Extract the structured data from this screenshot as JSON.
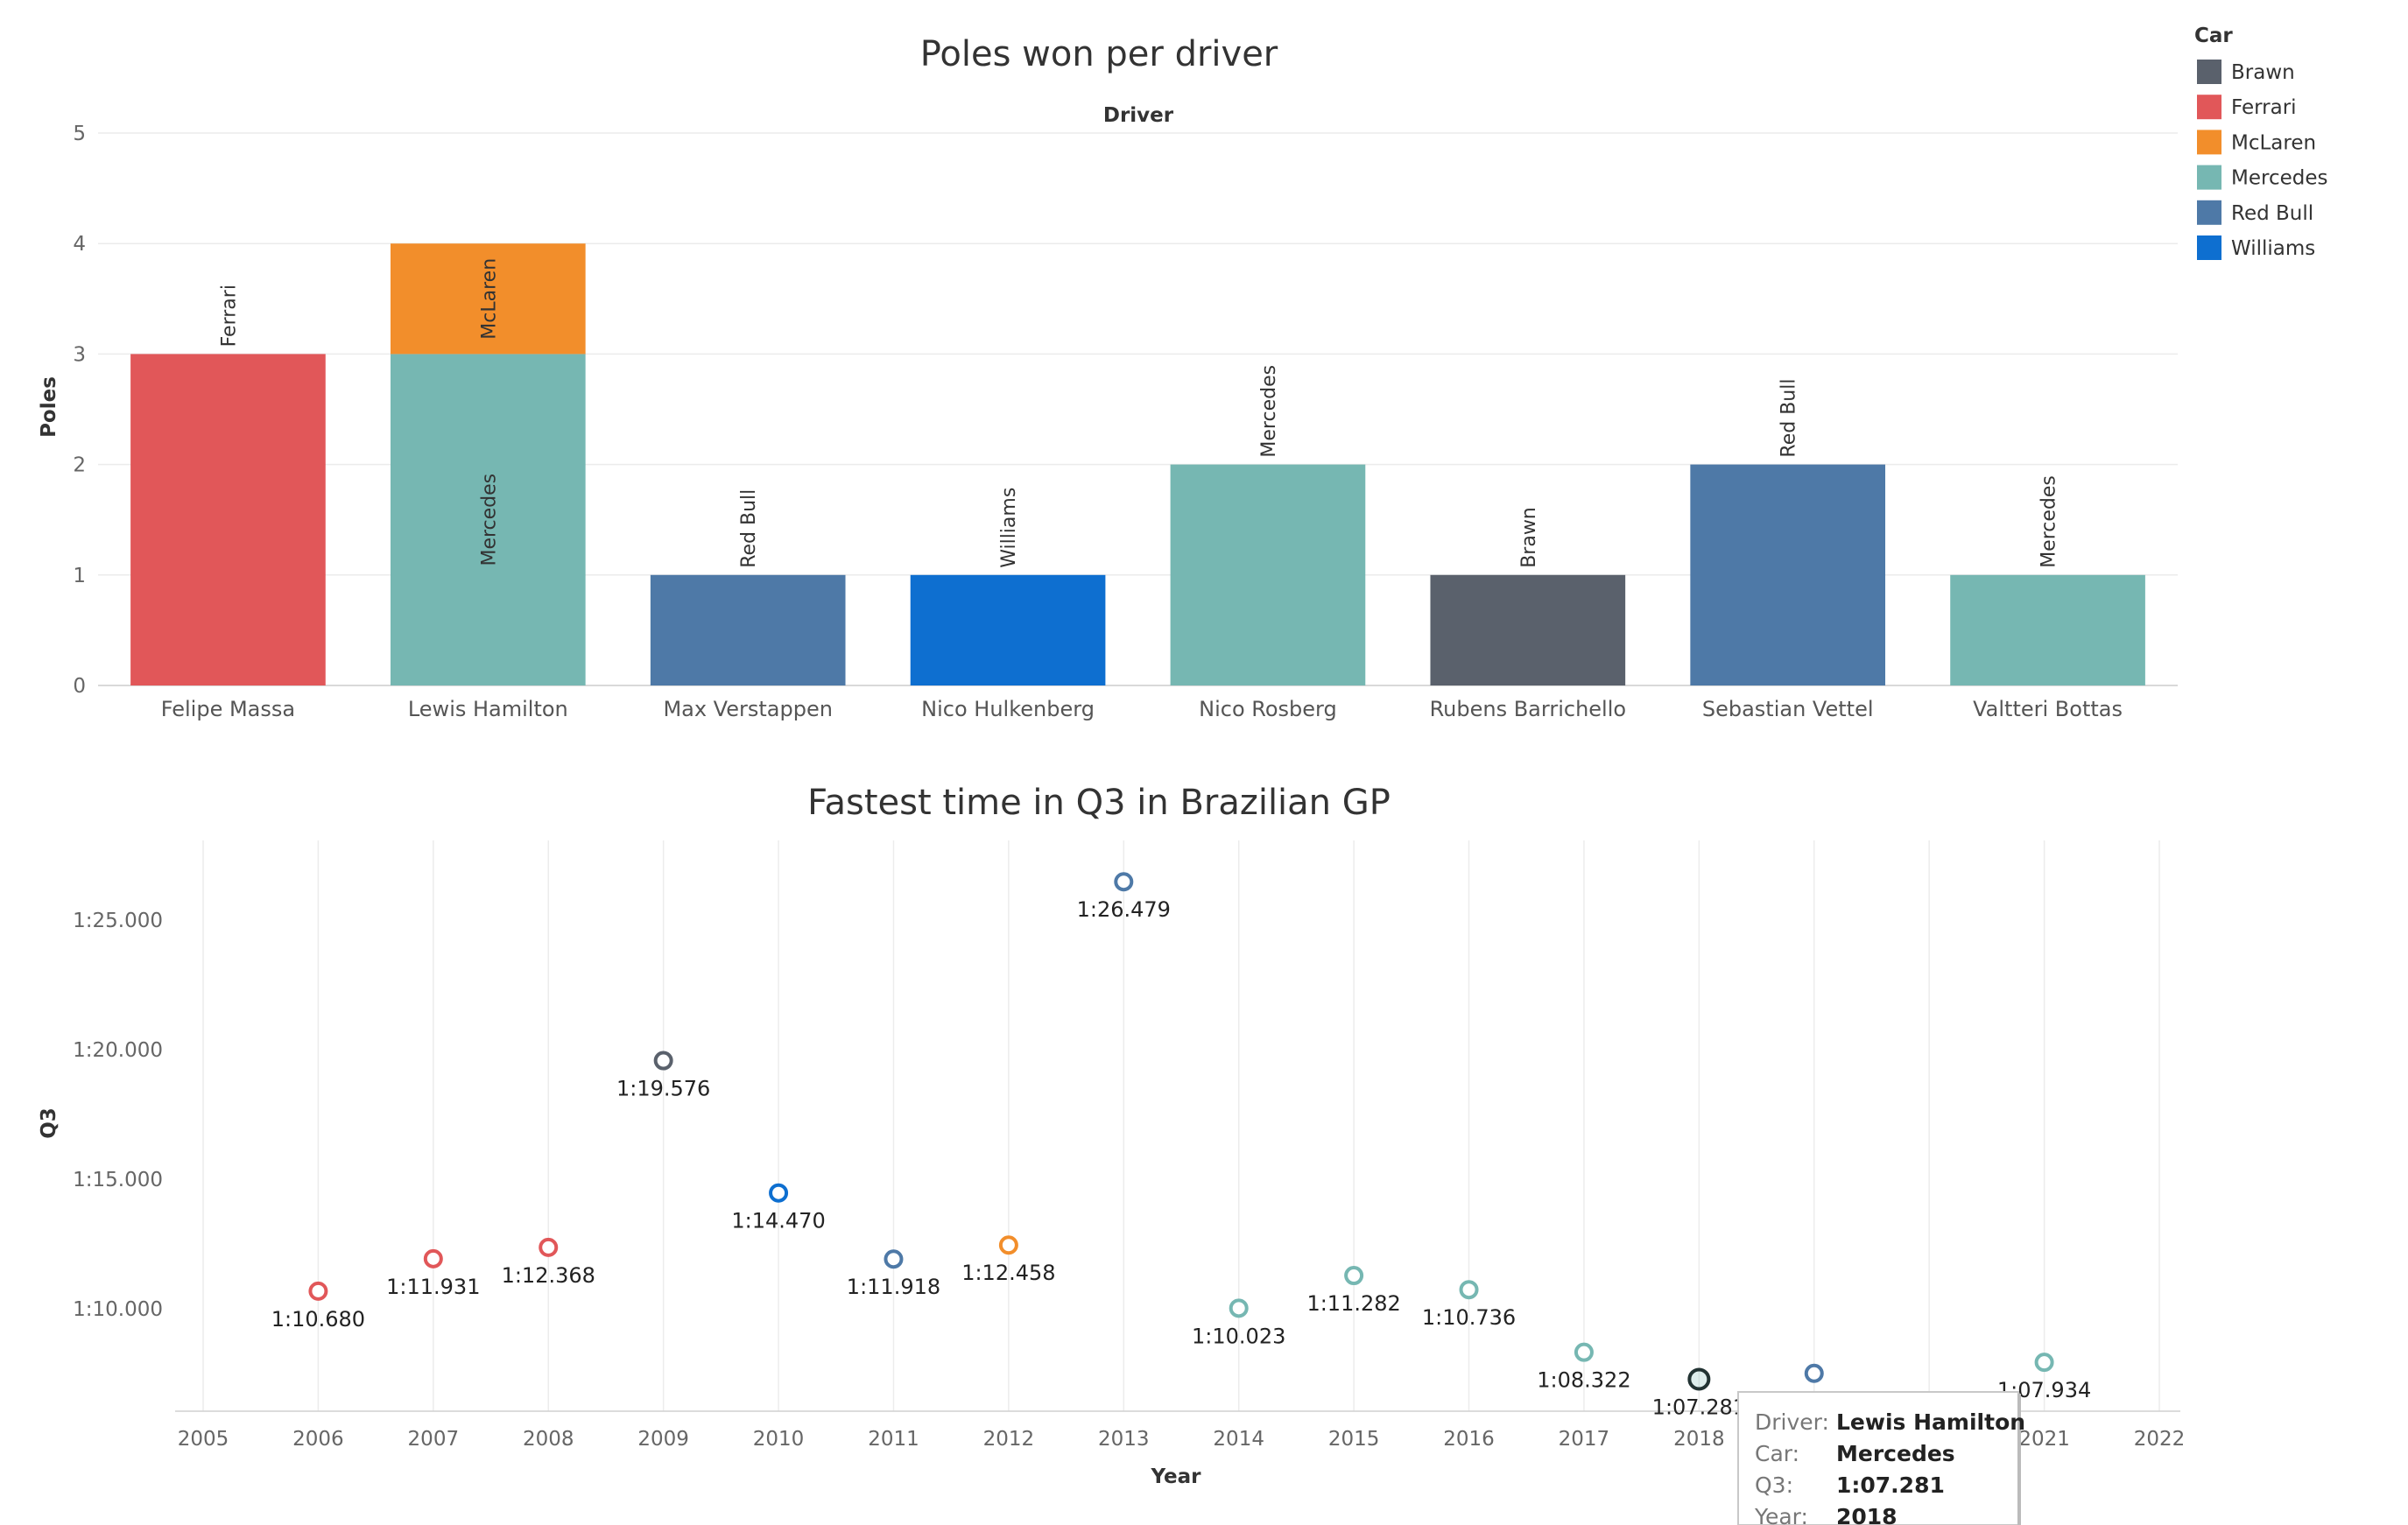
{
  "legend": {
    "title": "Car",
    "items": [
      {
        "name": "Brawn",
        "color": "#5a616c"
      },
      {
        "name": "Ferrari",
        "color": "#e15759"
      },
      {
        "name": "McLaren",
        "color": "#f28e2b"
      },
      {
        "name": "Mercedes",
        "color": "#76b7b2"
      },
      {
        "name": "Red Bull",
        "color": "#4e79a7"
      },
      {
        "name": "Williams",
        "color": "#0e6fd0"
      }
    ]
  },
  "chart_data": [
    {
      "type": "bar",
      "stacked": true,
      "title": "Poles won per driver",
      "header": "Driver",
      "ylabel": "Poles",
      "ylim": [
        0,
        5
      ],
      "yticks": [
        0,
        1,
        2,
        3,
        4,
        5
      ],
      "categories": [
        "Felipe Massa",
        "Lewis Hamilton",
        "Max Verstappen",
        "Nico Hulkenberg",
        "Nico Rosberg",
        "Rubens Barrichello",
        "Sebastian Vettel",
        "Valtteri Bottas"
      ],
      "stacks": [
        [
          {
            "car": "Ferrari",
            "value": 3
          }
        ],
        [
          {
            "car": "Mercedes",
            "value": 3
          },
          {
            "car": "McLaren",
            "value": 1
          }
        ],
        [
          {
            "car": "Red Bull",
            "value": 1
          }
        ],
        [
          {
            "car": "Williams",
            "value": 1
          }
        ],
        [
          {
            "car": "Mercedes",
            "value": 2
          }
        ],
        [
          {
            "car": "Brawn",
            "value": 1
          }
        ],
        [
          {
            "car": "Red Bull",
            "value": 2
          }
        ],
        [
          {
            "car": "Mercedes",
            "value": 1
          }
        ]
      ],
      "grid": true
    },
    {
      "type": "scatter",
      "title": "Fastest time in Q3 in Brazilian GP",
      "xlabel": "Year",
      "ylabel": "Q3",
      "xlim": [
        2005,
        2022
      ],
      "xticks": [
        "2005",
        "2006",
        "2007",
        "2008",
        "2009",
        "2010",
        "2011",
        "2012",
        "2013",
        "2014",
        "2015",
        "2016",
        "2017",
        "2018",
        "2019",
        "2020",
        "2021",
        "2022"
      ],
      "yticks": [
        "1:10.000",
        "1:15.000",
        "1:20.000",
        "1:25.000"
      ],
      "points": [
        {
          "year": 2006,
          "q3": "1:10.680",
          "car": "Ferrari"
        },
        {
          "year": 2007,
          "q3": "1:11.931",
          "car": "Ferrari"
        },
        {
          "year": 2008,
          "q3": "1:12.368",
          "car": "Ferrari"
        },
        {
          "year": 2009,
          "q3": "1:19.576",
          "car": "Brawn"
        },
        {
          "year": 2010,
          "q3": "1:14.470",
          "car": "Williams"
        },
        {
          "year": 2011,
          "q3": "1:11.918",
          "car": "Red Bull"
        },
        {
          "year": 2012,
          "q3": "1:12.458",
          "car": "McLaren"
        },
        {
          "year": 2013,
          "q3": "1:26.479",
          "car": "Red Bull"
        },
        {
          "year": 2014,
          "q3": "1:10.023",
          "car": "Mercedes"
        },
        {
          "year": 2015,
          "q3": "1:11.282",
          "car": "Mercedes"
        },
        {
          "year": 2016,
          "q3": "1:10.736",
          "car": "Mercedes"
        },
        {
          "year": 2017,
          "q3": "1:08.322",
          "car": "Mercedes"
        },
        {
          "year": 2018,
          "q3": "1:07.281",
          "car": "Mercedes"
        },
        {
          "year": 2019,
          "q3": "1:07.508",
          "car": "Red Bull"
        },
        {
          "year": 2021,
          "q3": "1:07.934",
          "car": "Mercedes"
        }
      ],
      "grid": true
    }
  ],
  "tooltip": {
    "rows": [
      {
        "key": "Driver:",
        "value": "Lewis Hamilton"
      },
      {
        "key": "Car:",
        "value": "Mercedes"
      },
      {
        "key": "Q3:",
        "value": "1:07.281"
      },
      {
        "key": "Year:",
        "value": "2018"
      }
    ]
  }
}
